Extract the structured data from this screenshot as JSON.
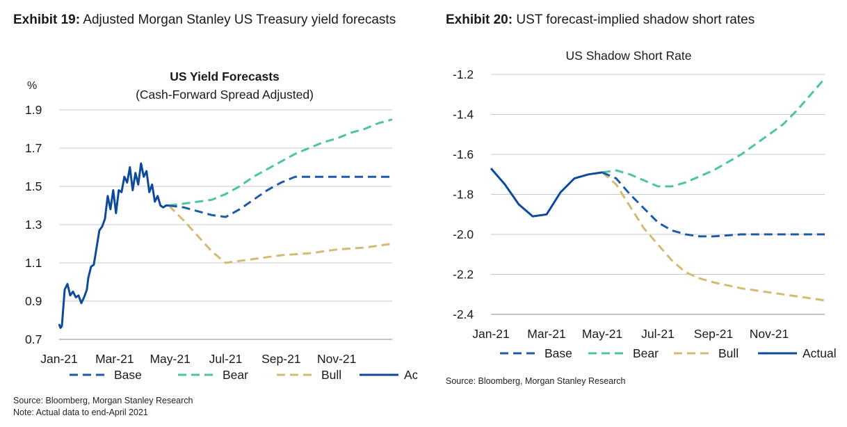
{
  "exhibits": [
    {
      "label": "Exhibit 19:",
      "title": "Adjusted Morgan Stanley US Treasury yield forecasts",
      "source": "Source: Bloomberg, Morgan Stanley Research",
      "note": "Note: Actual data to end-April 2021"
    },
    {
      "label": "Exhibit 20:",
      "title": "UST forecast-implied shadow short rates",
      "source": "Source: Bloomberg, Morgan Stanley Research"
    }
  ],
  "colors": {
    "base": "#1f5aa6",
    "bear": "#4dc3a5",
    "bull": "#d4bb74",
    "actual": "#0d4a9c",
    "grid": "#c8c8c8"
  },
  "chart_data": [
    {
      "type": "line",
      "title": "US Yield Forecasts",
      "subtitle": "(Cash-Forward Spread Adjusted)",
      "ylabel": "%",
      "ylim": [
        0.7,
        1.9
      ],
      "yticks": [
        "1.9",
        "1.7",
        "1.5",
        "1.3",
        "1.1",
        "0.9",
        "0.7"
      ],
      "xticks": [
        "Jan-21",
        "Mar-21",
        "May-21",
        "Jul-21",
        "Sep-21",
        "Nov-21"
      ],
      "x_unit": "months since Jan-21",
      "xlim": [
        0,
        12
      ],
      "legend": [
        "Base",
        "Bear",
        "Bull",
        "Actual"
      ],
      "series": [
        {
          "name": "Actual",
          "x": [
            0,
            0.05,
            0.1,
            0.2,
            0.3,
            0.4,
            0.5,
            0.6,
            0.7,
            0.8,
            0.9,
            1.0,
            1.05,
            1.15,
            1.25,
            1.35,
            1.45,
            1.55,
            1.65,
            1.75,
            1.85,
            1.95,
            2.05,
            2.15,
            2.25,
            2.35,
            2.45,
            2.55,
            2.65,
            2.75,
            2.85,
            2.95,
            3.05,
            3.15,
            3.25,
            3.35,
            3.45,
            3.55,
            3.65,
            3.75,
            3.85,
            3.95
          ],
          "values": [
            0.78,
            0.76,
            0.77,
            0.96,
            0.99,
            0.93,
            0.95,
            0.92,
            0.93,
            0.89,
            0.92,
            0.96,
            1.02,
            1.08,
            1.09,
            1.18,
            1.27,
            1.29,
            1.33,
            1.45,
            1.38,
            1.48,
            1.36,
            1.48,
            1.47,
            1.55,
            1.52,
            1.6,
            1.48,
            1.57,
            1.51,
            1.62,
            1.55,
            1.58,
            1.47,
            1.51,
            1.42,
            1.45,
            1.4,
            1.39,
            1.4,
            1.4
          ]
        },
        {
          "name": "Base",
          "x": [
            3.95,
            4.5,
            5.0,
            5.5,
            6.0,
            6.5,
            7.0,
            7.5,
            8.0,
            8.5,
            9.0,
            10,
            11,
            12
          ],
          "values": [
            1.4,
            1.39,
            1.37,
            1.35,
            1.34,
            1.38,
            1.43,
            1.48,
            1.52,
            1.55,
            1.55,
            1.55,
            1.55,
            1.55
          ]
        },
        {
          "name": "Bear",
          "x": [
            3.95,
            4.5,
            5.0,
            5.5,
            6.0,
            6.5,
            7.0,
            7.5,
            8.0,
            8.5,
            9.0,
            9.5,
            10,
            10.5,
            11,
            11.5,
            12
          ],
          "values": [
            1.4,
            1.41,
            1.42,
            1.43,
            1.46,
            1.5,
            1.55,
            1.59,
            1.63,
            1.67,
            1.7,
            1.73,
            1.75,
            1.78,
            1.8,
            1.83,
            1.85
          ]
        },
        {
          "name": "Bull",
          "x": [
            3.95,
            4.5,
            5.0,
            5.5,
            6.0,
            6.5,
            7.0,
            7.5,
            8.0,
            9.0,
            10,
            11,
            12
          ],
          "values": [
            1.4,
            1.32,
            1.24,
            1.16,
            1.1,
            1.11,
            1.12,
            1.13,
            1.14,
            1.15,
            1.17,
            1.18,
            1.2
          ]
        }
      ]
    },
    {
      "type": "line",
      "title": "US Shadow Short Rate",
      "ylim": [
        -2.4,
        -1.2
      ],
      "yticks": [
        "-1.2",
        "-1.4",
        "-1.6",
        "-1.8",
        "-2.0",
        "-2.2",
        "-2.4"
      ],
      "xticks": [
        "Jan-21",
        "Mar-21",
        "May-21",
        "Jul-21",
        "Sep-21",
        "Nov-21"
      ],
      "x_unit": "months since Jan-21",
      "xlim": [
        0,
        12
      ],
      "legend": [
        "Base",
        "Bear",
        "Bull",
        "Actual"
      ],
      "series": [
        {
          "name": "Actual",
          "x": [
            0,
            0.5,
            1.0,
            1.5,
            2.0,
            2.5,
            3.0,
            3.5,
            4.0
          ],
          "values": [
            -1.67,
            -1.75,
            -1.85,
            -1.91,
            -1.9,
            -1.79,
            -1.72,
            -1.7,
            -1.69
          ]
        },
        {
          "name": "Base",
          "x": [
            4.0,
            4.5,
            5.0,
            5.5,
            6.0,
            6.5,
            7.0,
            7.5,
            8.0,
            9,
            10,
            11,
            12
          ],
          "values": [
            -1.69,
            -1.72,
            -1.8,
            -1.87,
            -1.94,
            -1.98,
            -2.0,
            -2.01,
            -2.01,
            -2.0,
            -2.0,
            -2.0,
            -2.0
          ]
        },
        {
          "name": "Bear",
          "x": [
            4.0,
            4.5,
            5.0,
            5.5,
            6.0,
            6.5,
            7.0,
            7.5,
            8.0,
            8.5,
            9.0,
            9.5,
            10,
            10.5,
            11,
            11.5,
            12
          ],
          "values": [
            -1.69,
            -1.68,
            -1.7,
            -1.73,
            -1.76,
            -1.76,
            -1.74,
            -1.71,
            -1.68,
            -1.64,
            -1.6,
            -1.55,
            -1.5,
            -1.45,
            -1.38,
            -1.3,
            -1.22
          ]
        },
        {
          "name": "Bull",
          "x": [
            4.0,
            4.5,
            5.0,
            5.5,
            6.0,
            6.5,
            7.0,
            7.5,
            8.0,
            9,
            10,
            11,
            12
          ],
          "values": [
            -1.69,
            -1.75,
            -1.86,
            -1.97,
            -2.05,
            -2.13,
            -2.19,
            -2.22,
            -2.24,
            -2.27,
            -2.29,
            -2.31,
            -2.33
          ]
        }
      ]
    }
  ]
}
